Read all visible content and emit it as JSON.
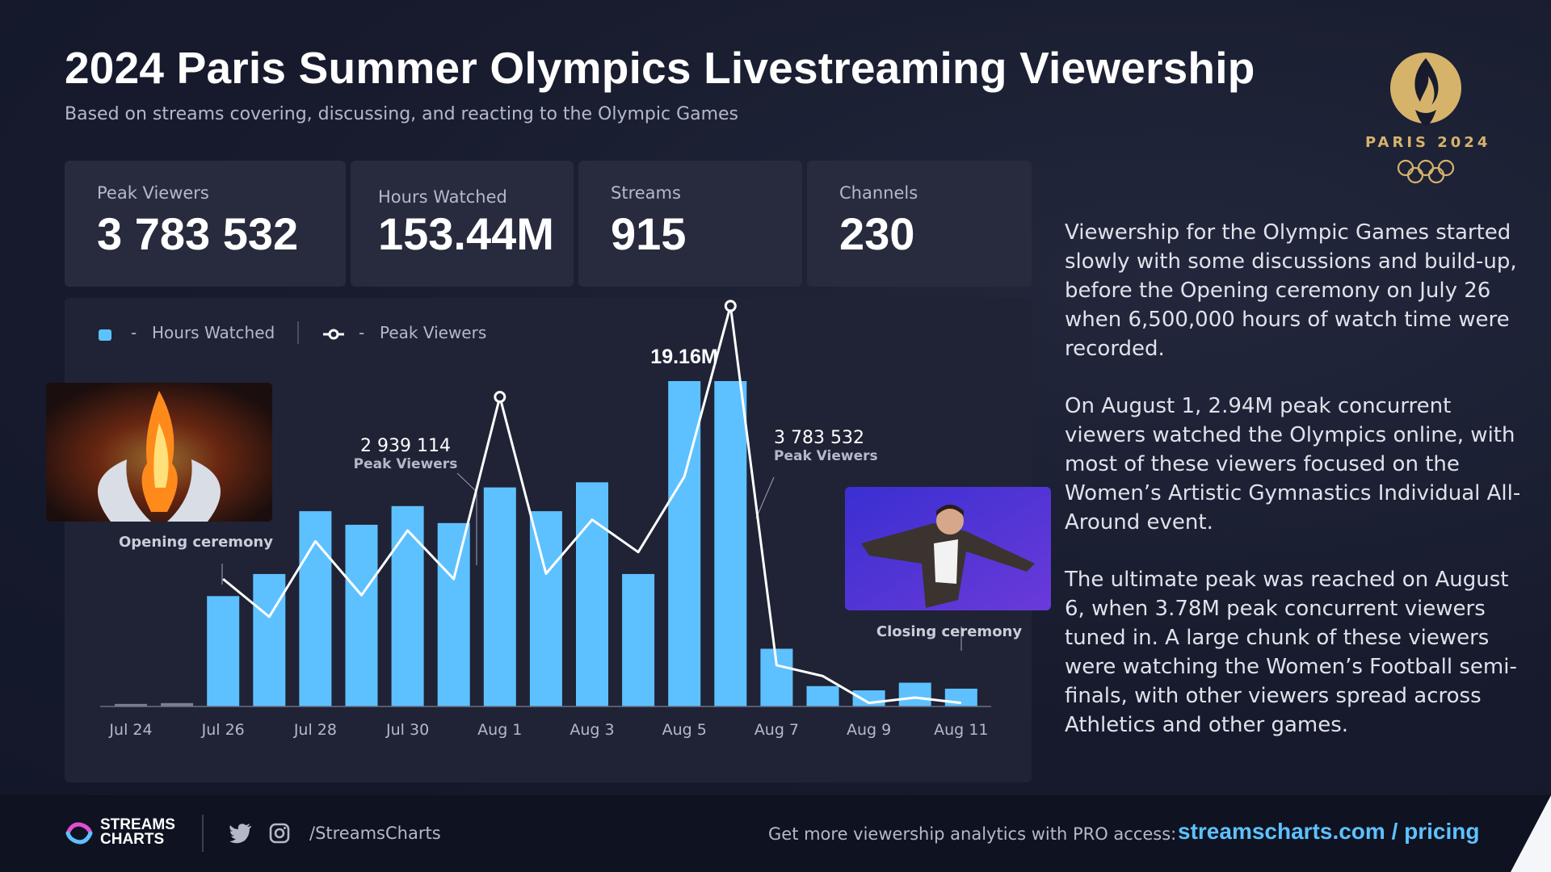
{
  "header": {
    "title": "2024 Paris Summer Olympics Livestreaming Viewership",
    "subtitle": "Based on streams covering, discussing, and reacting to the Olympic Games",
    "logo_text": "PARIS 2024"
  },
  "stats": [
    {
      "label": "Peak Viewers",
      "value": "3 783 532"
    },
    {
      "label": "Hours Watched",
      "value": "153.44M"
    },
    {
      "label": "Streams",
      "value": "915"
    },
    {
      "label": "Channels",
      "value": "230"
    }
  ],
  "legend": {
    "hours": "Hours Watched",
    "peak": "Peak Viewers",
    "dash": "-"
  },
  "annotations": {
    "max_bar": "19.16M",
    "aug1_value": "2 939 114",
    "aug1_label": "Peak Viewers",
    "aug6_value": "3 783 532",
    "aug6_label": "Peak Viewers",
    "opening": "Opening ceremony",
    "closing": "Closing ceremony"
  },
  "chart_data": {
    "type": "bar",
    "x": [
      "Jul 24",
      "Jul 25",
      "Jul 26",
      "Jul 27",
      "Jul 28",
      "Jul 29",
      "Jul 30",
      "Jul 31",
      "Aug 1",
      "Aug 2",
      "Aug 3",
      "Aug 4",
      "Aug 5",
      "Aug 6",
      "Aug 7",
      "Aug 8",
      "Aug 9",
      "Aug 10",
      "Aug 11"
    ],
    "x_tick_labels": [
      "Jul 24",
      "Jul 26",
      "Jul 28",
      "Jul 30",
      "Aug 1",
      "Aug 3",
      "Aug 5",
      "Aug 7",
      "Aug 9",
      "Aug 11"
    ],
    "series": [
      {
        "name": "Hours Watched",
        "type": "bar",
        "color": "#5ec1ff",
        "values": [
          0.15,
          0.2,
          6.5,
          7.8,
          11.5,
          10.7,
          11.8,
          10.8,
          12.9,
          11.5,
          13.2,
          7.8,
          19.16,
          19.16,
          3.4,
          1.2,
          0.95,
          1.4,
          1.05
        ]
      },
      {
        "name": "Peak Viewers",
        "type": "line",
        "color": "#ffffff",
        "values": [
          null,
          null,
          1250000,
          900000,
          1600000,
          1100000,
          1700000,
          1250000,
          2939114,
          1300000,
          1800000,
          1500000,
          2200000,
          3783532,
          450000,
          350000,
          100000,
          150000,
          100000
        ]
      }
    ],
    "ylim_bars": [
      0,
      19.16
    ],
    "ylim_line": [
      0,
      4000000
    ]
  },
  "side_text": [
    "Viewership for the Olympic Games started slowly with some discussions and build-up, before the Opening ceremony on July 26 when 6,500,000 hours of watch time were recorded.",
    "On August 1, 2.94M peak concurrent viewers watched the Olympics online, with most of these viewers focused on the Women’s Artistic Gymnastics Individual All-Around event.",
    "The ultimate peak was reached on August 6, when 3.78M peak concurrent viewers tuned in. A large chunk of these viewers were watching the Women’s Football semi-finals, with other viewers spread across Athletics and other games."
  ],
  "footer": {
    "brand_line1": "STREAMS",
    "brand_line2": "CHARTS",
    "handle": "/StreamsCharts",
    "cta": "Get more viewership analytics with PRO access:",
    "link": "streamscharts.com / pricing"
  },
  "colors": {
    "bar": "#5ec1ff",
    "line": "#ffffff",
    "gold": "#d5b36b",
    "accent": "#5ec1ff"
  }
}
